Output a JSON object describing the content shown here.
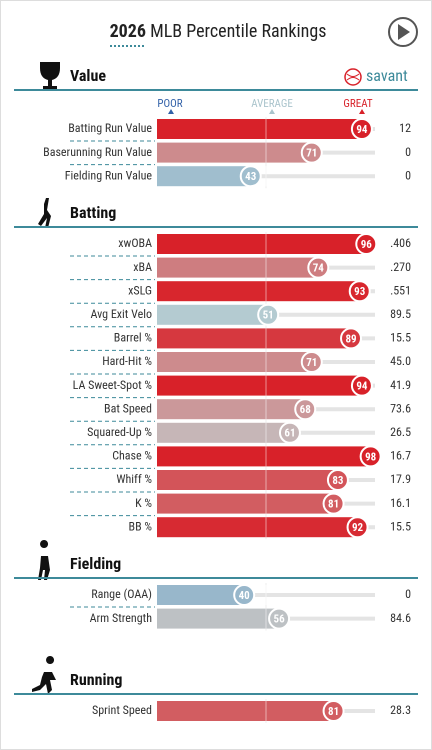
{
  "header": {
    "year": "2026",
    "title": "MLB Percentile Rankings",
    "brand": "savant"
  },
  "scale": {
    "labels": [
      "POOR",
      "AVERAGE",
      "GREAT"
    ]
  },
  "sections": [
    {
      "name": "Value",
      "rows": [
        {
          "label": "Batting Run Value",
          "percentile": 94,
          "value": "12"
        },
        {
          "label": "Baserunning Run Value",
          "percentile": 71,
          "value": "0"
        },
        {
          "label": "Fielding Run Value",
          "percentile": 43,
          "value": "0"
        }
      ]
    },
    {
      "name": "Batting",
      "rows": [
        {
          "label": "xwOBA",
          "percentile": 96,
          "value": ".406"
        },
        {
          "label": "xBA",
          "percentile": 74,
          "value": ".270"
        },
        {
          "label": "xSLG",
          "percentile": 93,
          "value": ".551"
        },
        {
          "label": "Avg Exit Velo",
          "percentile": 51,
          "value": "89.5"
        },
        {
          "label": "Barrel %",
          "percentile": 89,
          "value": "15.5"
        },
        {
          "label": "Hard-Hit %",
          "percentile": 71,
          "value": "45.0"
        },
        {
          "label": "LA Sweet-Spot %",
          "percentile": 94,
          "value": "41.9"
        },
        {
          "label": "Bat Speed",
          "percentile": 68,
          "value": "73.6"
        },
        {
          "label": "Squared-Up %",
          "percentile": 61,
          "value": "26.5"
        },
        {
          "label": "Chase %",
          "percentile": 98,
          "value": "16.7"
        },
        {
          "label": "Whiff %",
          "percentile": 83,
          "value": "17.9"
        },
        {
          "label": "K %",
          "percentile": 81,
          "value": "16.1"
        },
        {
          "label": "BB %",
          "percentile": 92,
          "value": "15.5"
        }
      ]
    },
    {
      "name": "Fielding",
      "rows": [
        {
          "label": "Range (OAA)",
          "percentile": 40,
          "value": "0"
        },
        {
          "label": "Arm Strength",
          "percentile": 56,
          "value": "84.6"
        }
      ]
    },
    {
      "name": "Running",
      "rows": [
        {
          "label": "Sprint Speed",
          "percentile": 81,
          "value": "28.3"
        }
      ]
    }
  ]
}
